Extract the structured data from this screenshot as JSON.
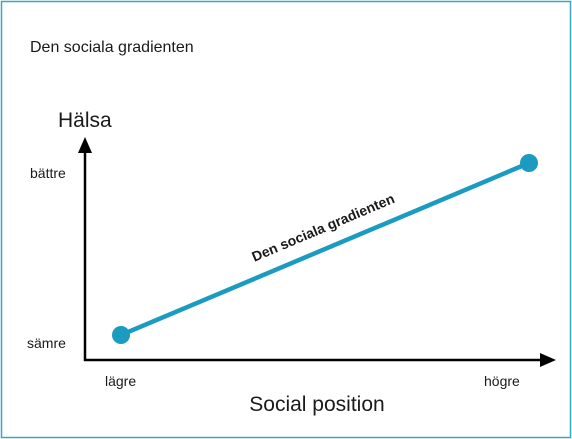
{
  "header": {
    "title": "Den sociala gradienten"
  },
  "axes": {
    "y_label": "Hälsa",
    "y_high": "bättre",
    "y_low": "sämre",
    "x_label": "Social position",
    "x_low": "lägre",
    "x_high": "högre"
  },
  "line": {
    "label": "Den sociala gradienten"
  }
}
